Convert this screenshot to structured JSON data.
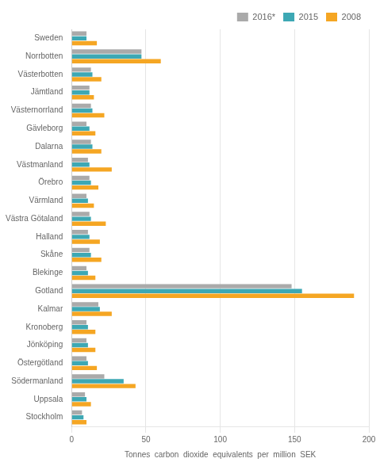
{
  "chart_data": {
    "type": "bar",
    "orientation": "horizontal",
    "categories": [
      "Sweden",
      "Norrbotten",
      "Västerbotten",
      "Jämtland",
      "Västernorrland",
      "Gävleborg",
      "Dalarna",
      "Västmanland",
      "Örebro",
      "Värmland",
      "Västra Götaland",
      "Halland",
      "Skåne",
      "Blekinge",
      "Gotland",
      "Kalmar",
      "Kronoberg",
      "Jönköping",
      "Östergötland",
      "Södermanland",
      "Uppsala",
      "Stockholm"
    ],
    "series": [
      {
        "name": "2016*",
        "color": "#aaaaaa",
        "values": [
          10,
          47,
          13,
          12,
          13,
          10,
          13,
          11,
          12,
          10,
          12,
          11,
          12,
          10,
          148,
          18,
          10,
          10,
          10,
          22,
          9,
          7
        ]
      },
      {
        "name": "2015",
        "color": "#3da8b4",
        "values": [
          10,
          47,
          14,
          12,
          14,
          12,
          14,
          12,
          13,
          11,
          13,
          12,
          13,
          11,
          155,
          19,
          11,
          11,
          11,
          35,
          10,
          8
        ]
      },
      {
        "name": "2008",
        "color": "#f5a623",
        "values": [
          17,
          60,
          20,
          15,
          22,
          16,
          20,
          27,
          18,
          15,
          23,
          19,
          20,
          16,
          190,
          27,
          16,
          16,
          17,
          43,
          13,
          10
        ]
      }
    ],
    "xlabel": "Tonnes  carbon  dioxide  equivalents  per  million  SEK",
    "xlim": [
      0,
      200
    ],
    "xticks": [
      0,
      50,
      100,
      150,
      200
    ],
    "grid": true,
    "legend": "upper right"
  }
}
